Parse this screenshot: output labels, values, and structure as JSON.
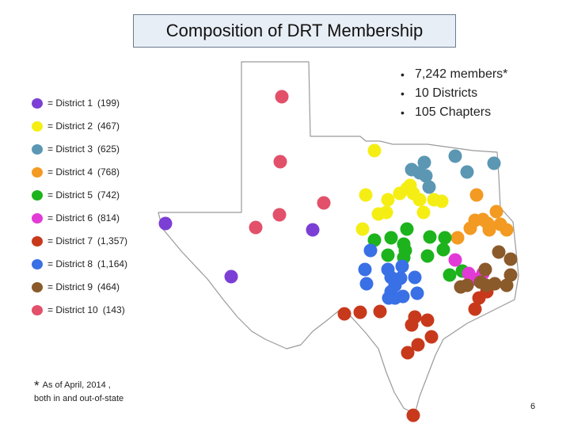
{
  "title": "Composition of DRT Membership",
  "facts": [
    "7,242 members*",
    "10 Districts",
    "105 Chapters"
  ],
  "legend": [
    {
      "label": "= District 1",
      "count": "(199)",
      "color": "#7b3fd6"
    },
    {
      "label": "= District 2",
      "count": "(467)",
      "color": "#f5ee14"
    },
    {
      "label": "= District 3",
      "count": "(625)",
      "color": "#5b97b3"
    },
    {
      "label": "= District 4",
      "count": "(768)",
      "color": "#f39a22"
    },
    {
      "label": "= District 5",
      "count": "(742)",
      "color": "#1db31d"
    },
    {
      "label": "= District 6",
      "count": "(814)",
      "color": "#e23ad6"
    },
    {
      "label": "= District 7",
      "count": "(1,357)",
      "color": "#c8391c"
    },
    {
      "label": "= District 8",
      "count": "(1,164)",
      "color": "#3970e6"
    },
    {
      "label": "= District 9",
      "count": "(464)",
      "color": "#8b5a2b"
    },
    {
      "label": "= District 10",
      "count": "(143)",
      "color": "#e2506a"
    }
  ],
  "note": {
    "star": "*",
    "line1": "As of April, 2014 ,",
    "line2": "both in and out-of-state"
  },
  "page_number": "6"
}
